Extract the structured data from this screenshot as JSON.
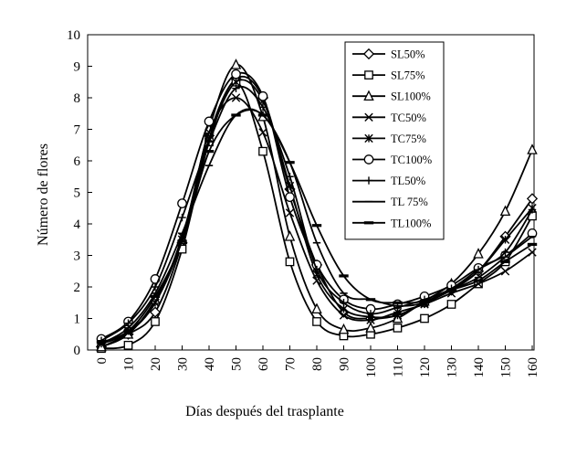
{
  "chart_data": {
    "type": "line",
    "title": "",
    "xlabel": "Días después del trasplante",
    "ylabel": "Número de flores",
    "x": [
      0,
      10,
      20,
      30,
      40,
      50,
      60,
      70,
      80,
      90,
      100,
      110,
      120,
      130,
      140,
      150,
      160
    ],
    "x_tick_labels": [
      "0",
      "10",
      "20",
      "30",
      "40",
      "50",
      "60",
      "70",
      "80",
      "90",
      "100",
      "110",
      "120",
      "130",
      "140",
      "150",
      "160"
    ],
    "y_tick_labels": [
      "0",
      "1",
      "2",
      "3",
      "4",
      "5",
      "6",
      "7",
      "8",
      "9",
      "10"
    ],
    "ylim": [
      0,
      10
    ],
    "grid": false,
    "legend_position": "top-right",
    "series": [
      {
        "name": "SL50%",
        "marker": "diamond",
        "values": [
          0.1,
          0.5,
          1.2,
          3.4,
          6.8,
          8.6,
          8.0,
          5.1,
          2.7,
          1.2,
          1.0,
          1.1,
          1.5,
          1.9,
          2.5,
          3.6,
          4.8
        ]
      },
      {
        "name": "SL75%",
        "marker": "square",
        "values": [
          0.05,
          0.15,
          0.9,
          3.2,
          6.6,
          8.5,
          6.3,
          2.8,
          0.9,
          0.45,
          0.5,
          0.7,
          1.0,
          1.45,
          2.1,
          2.8,
          4.25
        ]
      },
      {
        "name": "SL100%",
        "marker": "triangle",
        "values": [
          0.1,
          0.5,
          1.6,
          3.5,
          7.0,
          9.05,
          7.4,
          3.6,
          1.3,
          0.65,
          0.7,
          1.0,
          1.55,
          2.1,
          3.05,
          4.4,
          6.35
        ]
      },
      {
        "name": "TC50%",
        "marker": "x",
        "values": [
          0.2,
          0.55,
          1.5,
          3.5,
          6.9,
          8.0,
          6.9,
          4.35,
          2.2,
          1.1,
          0.95,
          1.2,
          1.45,
          1.8,
          2.1,
          2.5,
          3.1
        ]
      },
      {
        "name": "TC75%",
        "marker": "asterisk",
        "values": [
          0.2,
          0.6,
          1.5,
          3.6,
          6.7,
          8.5,
          7.9,
          5.2,
          2.4,
          1.3,
          1.05,
          1.1,
          1.5,
          1.95,
          2.5,
          3.5,
          4.5
        ]
      },
      {
        "name": "TC100%",
        "marker": "circle",
        "values": [
          0.35,
          0.9,
          2.25,
          4.65,
          7.25,
          8.75,
          8.05,
          4.85,
          2.7,
          1.6,
          1.3,
          1.45,
          1.7,
          2.05,
          2.6,
          3.0,
          3.7
        ]
      },
      {
        "name": "TL50%",
        "marker": "plus",
        "values": [
          0.3,
          0.85,
          2.0,
          4.2,
          6.6,
          8.3,
          7.7,
          5.5,
          2.55,
          1.5,
          1.15,
          1.35,
          1.6,
          1.95,
          2.55,
          3.1,
          4.45
        ]
      },
      {
        "name": "TL 75%",
        "marker": "dash",
        "values": [
          0.2,
          0.7,
          1.8,
          3.7,
          5.85,
          7.45,
          7.45,
          5.95,
          3.4,
          1.8,
          1.6,
          1.4,
          1.5,
          1.9,
          2.3,
          2.95,
          3.6
        ]
      },
      {
        "name": "TL100%",
        "marker": "thick-dash",
        "values": [
          0.25,
          0.6,
          1.7,
          3.45,
          6.3,
          7.45,
          7.45,
          5.95,
          3.95,
          2.35,
          1.6,
          1.5,
          1.55,
          1.9,
          2.2,
          2.8,
          3.35
        ]
      }
    ]
  }
}
